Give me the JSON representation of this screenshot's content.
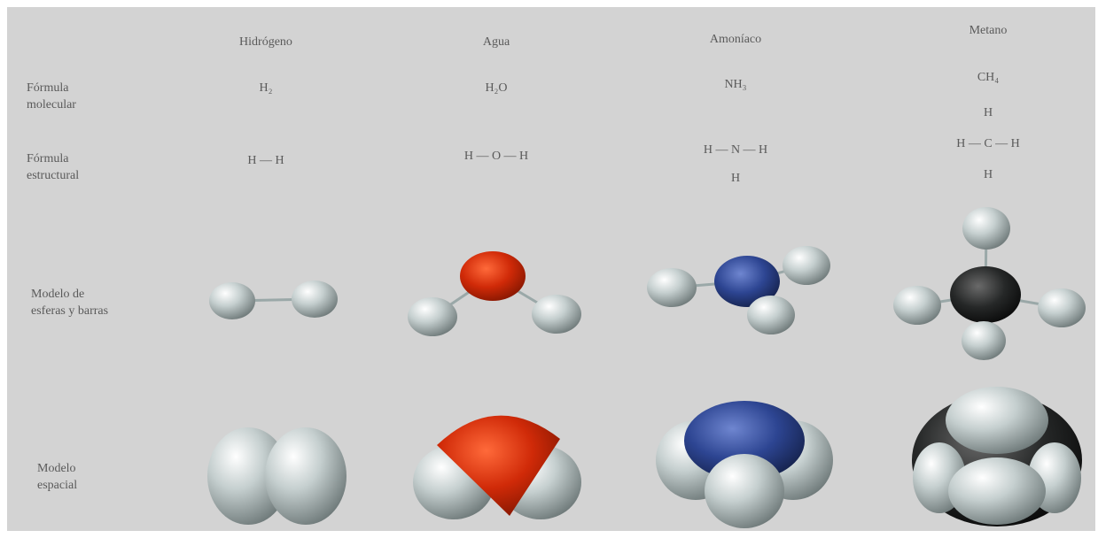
{
  "columns": [
    "Hidrógeno",
    "Agua",
    "Amoníaco",
    "Metano"
  ],
  "rows": [
    {
      "label": [
        "Fórmula",
        "molecular"
      ],
      "cells": [
        [
          "H₂"
        ],
        [
          "H₂O"
        ],
        [
          "NH₃"
        ],
        [
          "CH₄"
        ]
      ]
    },
    {
      "label": [
        "Fórmula",
        "estructural"
      ],
      "cells": [
        [
          "H — H"
        ],
        [
          "H — O — H"
        ],
        [
          "H — N — H",
          "H"
        ],
        [
          "H",
          "H — C — H",
          "H"
        ]
      ]
    },
    {
      "label": [
        "Modelo de",
        "esferas y barras"
      ]
    },
    {
      "label": [
        "Modelo",
        "espacial"
      ]
    }
  ]
}
